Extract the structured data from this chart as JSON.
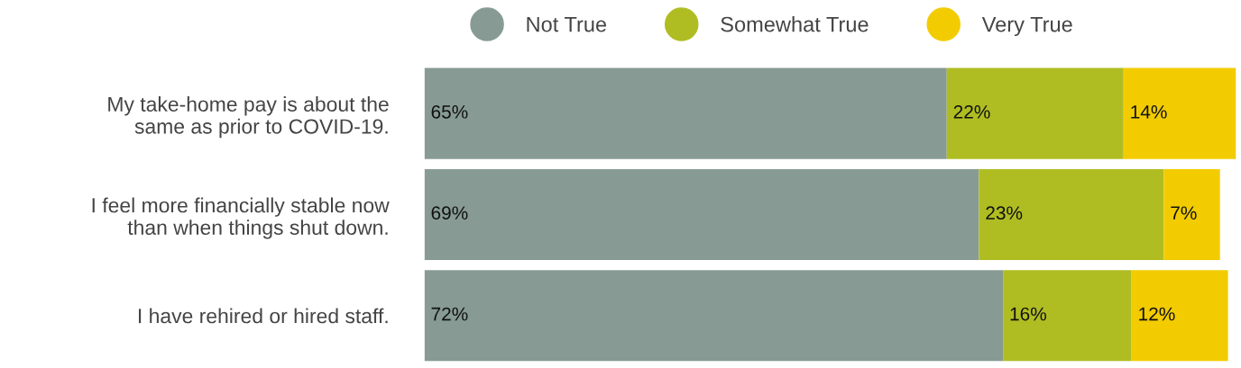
{
  "chart_data": {
    "type": "bar",
    "orientation": "horizontal",
    "stacked": true,
    "categories": [
      "My take-home pay is about the\nsame as prior to COVID-19.",
      "I feel more financially stable now\nthan when things shut down.",
      "I have rehired or hired staff."
    ],
    "series": [
      {
        "name": "Not True",
        "color": "#879b94",
        "values": [
          65,
          69,
          72
        ],
        "value_labels": [
          "65%",
          "69%",
          "72%"
        ]
      },
      {
        "name": "Somewhat True",
        "color": "#afbd22",
        "values": [
          22,
          23,
          16
        ],
        "value_labels": [
          "22%",
          "23%",
          "16%"
        ]
      },
      {
        "name": "Very True",
        "color": "#f2cc00",
        "values": [
          14,
          7,
          12
        ],
        "value_labels": [
          "14%",
          "7%",
          "12%"
        ]
      }
    ],
    "legend": "top",
    "grid": false
  }
}
